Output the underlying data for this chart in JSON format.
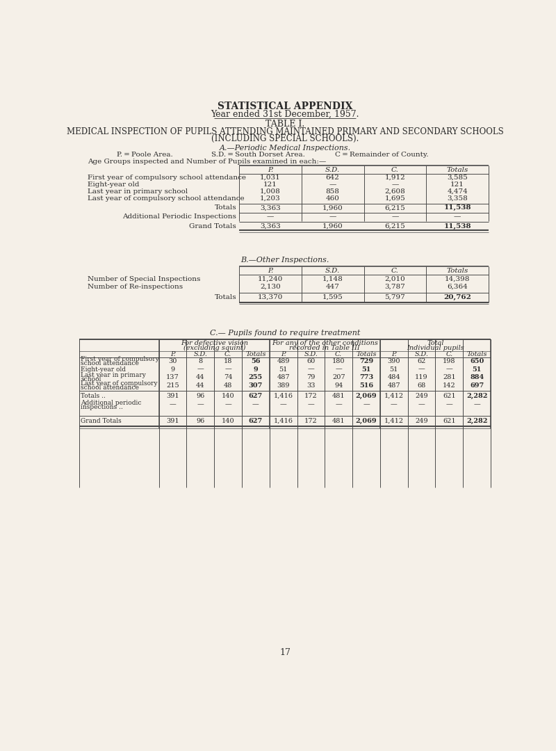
{
  "bg_color": "#f5f0e8",
  "title_line1": "STATISTICAL APPENDIX",
  "title_line2": "Year ended 31st December, 1957.",
  "table_label": "TABLE I.",
  "subtitle_line1": "MEDICAL INSPECTION OF PUPILS ATTENDING MAINTAINED PRIMARY AND SECONDARY SCHOOLS",
  "subtitle_line2": "(INCLUDING SPECIAL SCHOOLS).",
  "section_a_title": "A.—Periodic Medical Inspections.",
  "legend_p": "P. = Poole Area.",
  "legend_sd": "S.D. = South Dorset Area.",
  "legend_c": "C = Remainder of County.",
  "age_groups_header": "Age Groups inspected and Number of Pupils examined in each:—",
  "table_a_cols": [
    "P.",
    "S.D.",
    "C.",
    "Totals"
  ],
  "table_a_rows": [
    [
      "First year of compulsory school attendance",
      "1,031",
      "642",
      "1,912",
      "3,585"
    ],
    [
      "Eight-year old",
      "121",
      "—",
      "—",
      "121"
    ],
    [
      "Last year in primary school",
      "1,008",
      "858",
      "2,608",
      "4,474"
    ],
    [
      "Last year of compulsory school attendance",
      "1,203",
      "460",
      "1,695",
      "3,358"
    ]
  ],
  "table_a_totals_label": "Totals",
  "table_a_totals": [
    "3,363",
    "1,960",
    "6,215",
    "11,538"
  ],
  "table_a_additional_label": "Additional Periodic Inspections",
  "table_a_additional": [
    "—",
    "—",
    "—",
    "—"
  ],
  "table_a_grand_label": "Grand Totals",
  "table_a_grand": [
    "3,363",
    "1,960",
    "6,215",
    "11,538"
  ],
  "section_b_title": "B.—Other Inspections.",
  "table_b_cols": [
    "P.",
    "S.D.",
    "C.",
    "Totals"
  ],
  "table_b_rows": [
    [
      "Number of Special Inspections",
      "11,240",
      "1,148",
      "2,010",
      "14,398"
    ],
    [
      "Number of Re-inspections",
      "2,130",
      "447",
      "3,787",
      "6,364"
    ]
  ],
  "table_b_totals_label": "Totals",
  "table_b_totals": [
    "13,370",
    "1,595",
    "5,797",
    "20,762"
  ],
  "section_c_title": "C.— Pupils found to require treatment",
  "table_c_gh1": "For defective vision",
  "table_c_gh1b": "(excluding squint)",
  "table_c_gh2": "For any of the other conditions",
  "table_c_gh2b": "recorded in Table III",
  "table_c_gh3": "Total",
  "table_c_gh3b": "Individual pupils",
  "table_c_sub_cols": [
    "P.",
    "S.D.",
    "C.",
    "Totals",
    "P.",
    "S.D.",
    "C.",
    "Totals",
    "P.",
    "S.D.",
    "C.",
    "Totals"
  ],
  "table_c_rows": [
    [
      "First year of compulsory",
      "school attendance",
      "30",
      "8",
      "18",
      "56",
      "489",
      "60",
      "180",
      "729",
      "390",
      "62",
      "198",
      "650"
    ],
    [
      "Eight-year old",
      "",
      "9",
      "—",
      "—",
      "9",
      "51",
      "—",
      "—",
      "51",
      "51",
      "—",
      "—",
      "51"
    ],
    [
      "Last year in primary",
      "school",
      "137",
      "44",
      "74",
      "255",
      "487",
      "79",
      "207",
      "773",
      "484",
      "119",
      "281",
      "884"
    ],
    [
      "Last year of compulsory",
      "school attendance",
      "215",
      "44",
      "48",
      "307",
      "389",
      "33",
      "94",
      "516",
      "487",
      "68",
      "142",
      "697"
    ]
  ],
  "table_c_totals_label": "Totals ..",
  "table_c_totals": [
    "391",
    "96",
    "140",
    "627",
    "1,416",
    "172",
    "481",
    "2,069",
    "1,412",
    "249",
    "621",
    "2,282"
  ],
  "table_c_add_label1": "Additional periodic",
  "table_c_add_label2": "inspections ..",
  "table_c_additional": [
    "—",
    "—",
    "—",
    "—",
    "—",
    "—",
    "—",
    "—",
    "—",
    "—",
    "—",
    "—"
  ],
  "table_c_grand_label": "Grand Totals",
  "table_c_grand": [
    "391",
    "96",
    "140",
    "627",
    "1,416",
    "172",
    "481",
    "2,069",
    "1,412",
    "249",
    "621",
    "2,282"
  ],
  "page_number": "17",
  "text_color": "#2a2a2a",
  "line_color": "#4a4a4a"
}
